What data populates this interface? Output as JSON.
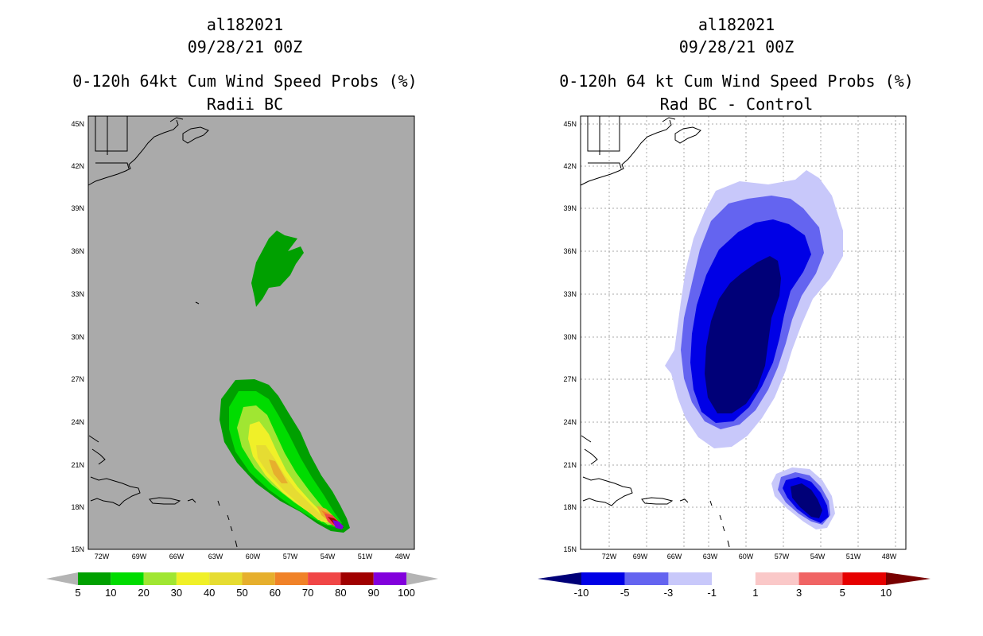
{
  "left_panel": {
    "storm_id": "al182021",
    "datetime": "09/28/21 00Z",
    "title": "0-120h 64kt Cum Wind Speed Probs (%)",
    "subtitle": "Radii BC",
    "colorbar": {
      "labels": [
        "5",
        "10",
        "20",
        "30",
        "40",
        "50",
        "60",
        "70",
        "80",
        "90",
        "100"
      ],
      "colors": [
        "#00a000",
        "#00dc00",
        "#a0e632",
        "#f0f028",
        "#e6dc32",
        "#e6af2d",
        "#f08228",
        "#f04646",
        "#a00000",
        "#8200dc"
      ],
      "over_under_color": "#b4b4b4"
    }
  },
  "right_panel": {
    "storm_id": "al182021",
    "datetime": "09/28/21 00Z",
    "title": "0-120h 64 kt Cum Wind Speed Probs (%)",
    "subtitle": "Rad BC - Control",
    "colorbar": {
      "labels": [
        "-10",
        "-5",
        "-3",
        "-1",
        "1",
        "3",
        "5",
        "10"
      ],
      "colors": [
        "#0000e6",
        "#6464f0",
        "#c8c8fa",
        "#ffffff",
        "#fac8c8",
        "#f06464",
        "#e60000"
      ],
      "low_end_color": "#000078",
      "high_end_color": "#780000"
    }
  },
  "axes": {
    "lat_labels": [
      "45N",
      "42N",
      "39N",
      "36N",
      "33N",
      "30N",
      "27N",
      "24N",
      "21N",
      "18N",
      "15N"
    ],
    "lon_labels": [
      "72W",
      "69W",
      "66W",
      "63W",
      "60W",
      "57W",
      "54W",
      "51W",
      "48W"
    ]
  },
  "colors": {
    "map_background_left": "#aaaaaa",
    "map_background_right": "#ffffff",
    "coast": "#000000",
    "grid": "#aaaaaa"
  }
}
